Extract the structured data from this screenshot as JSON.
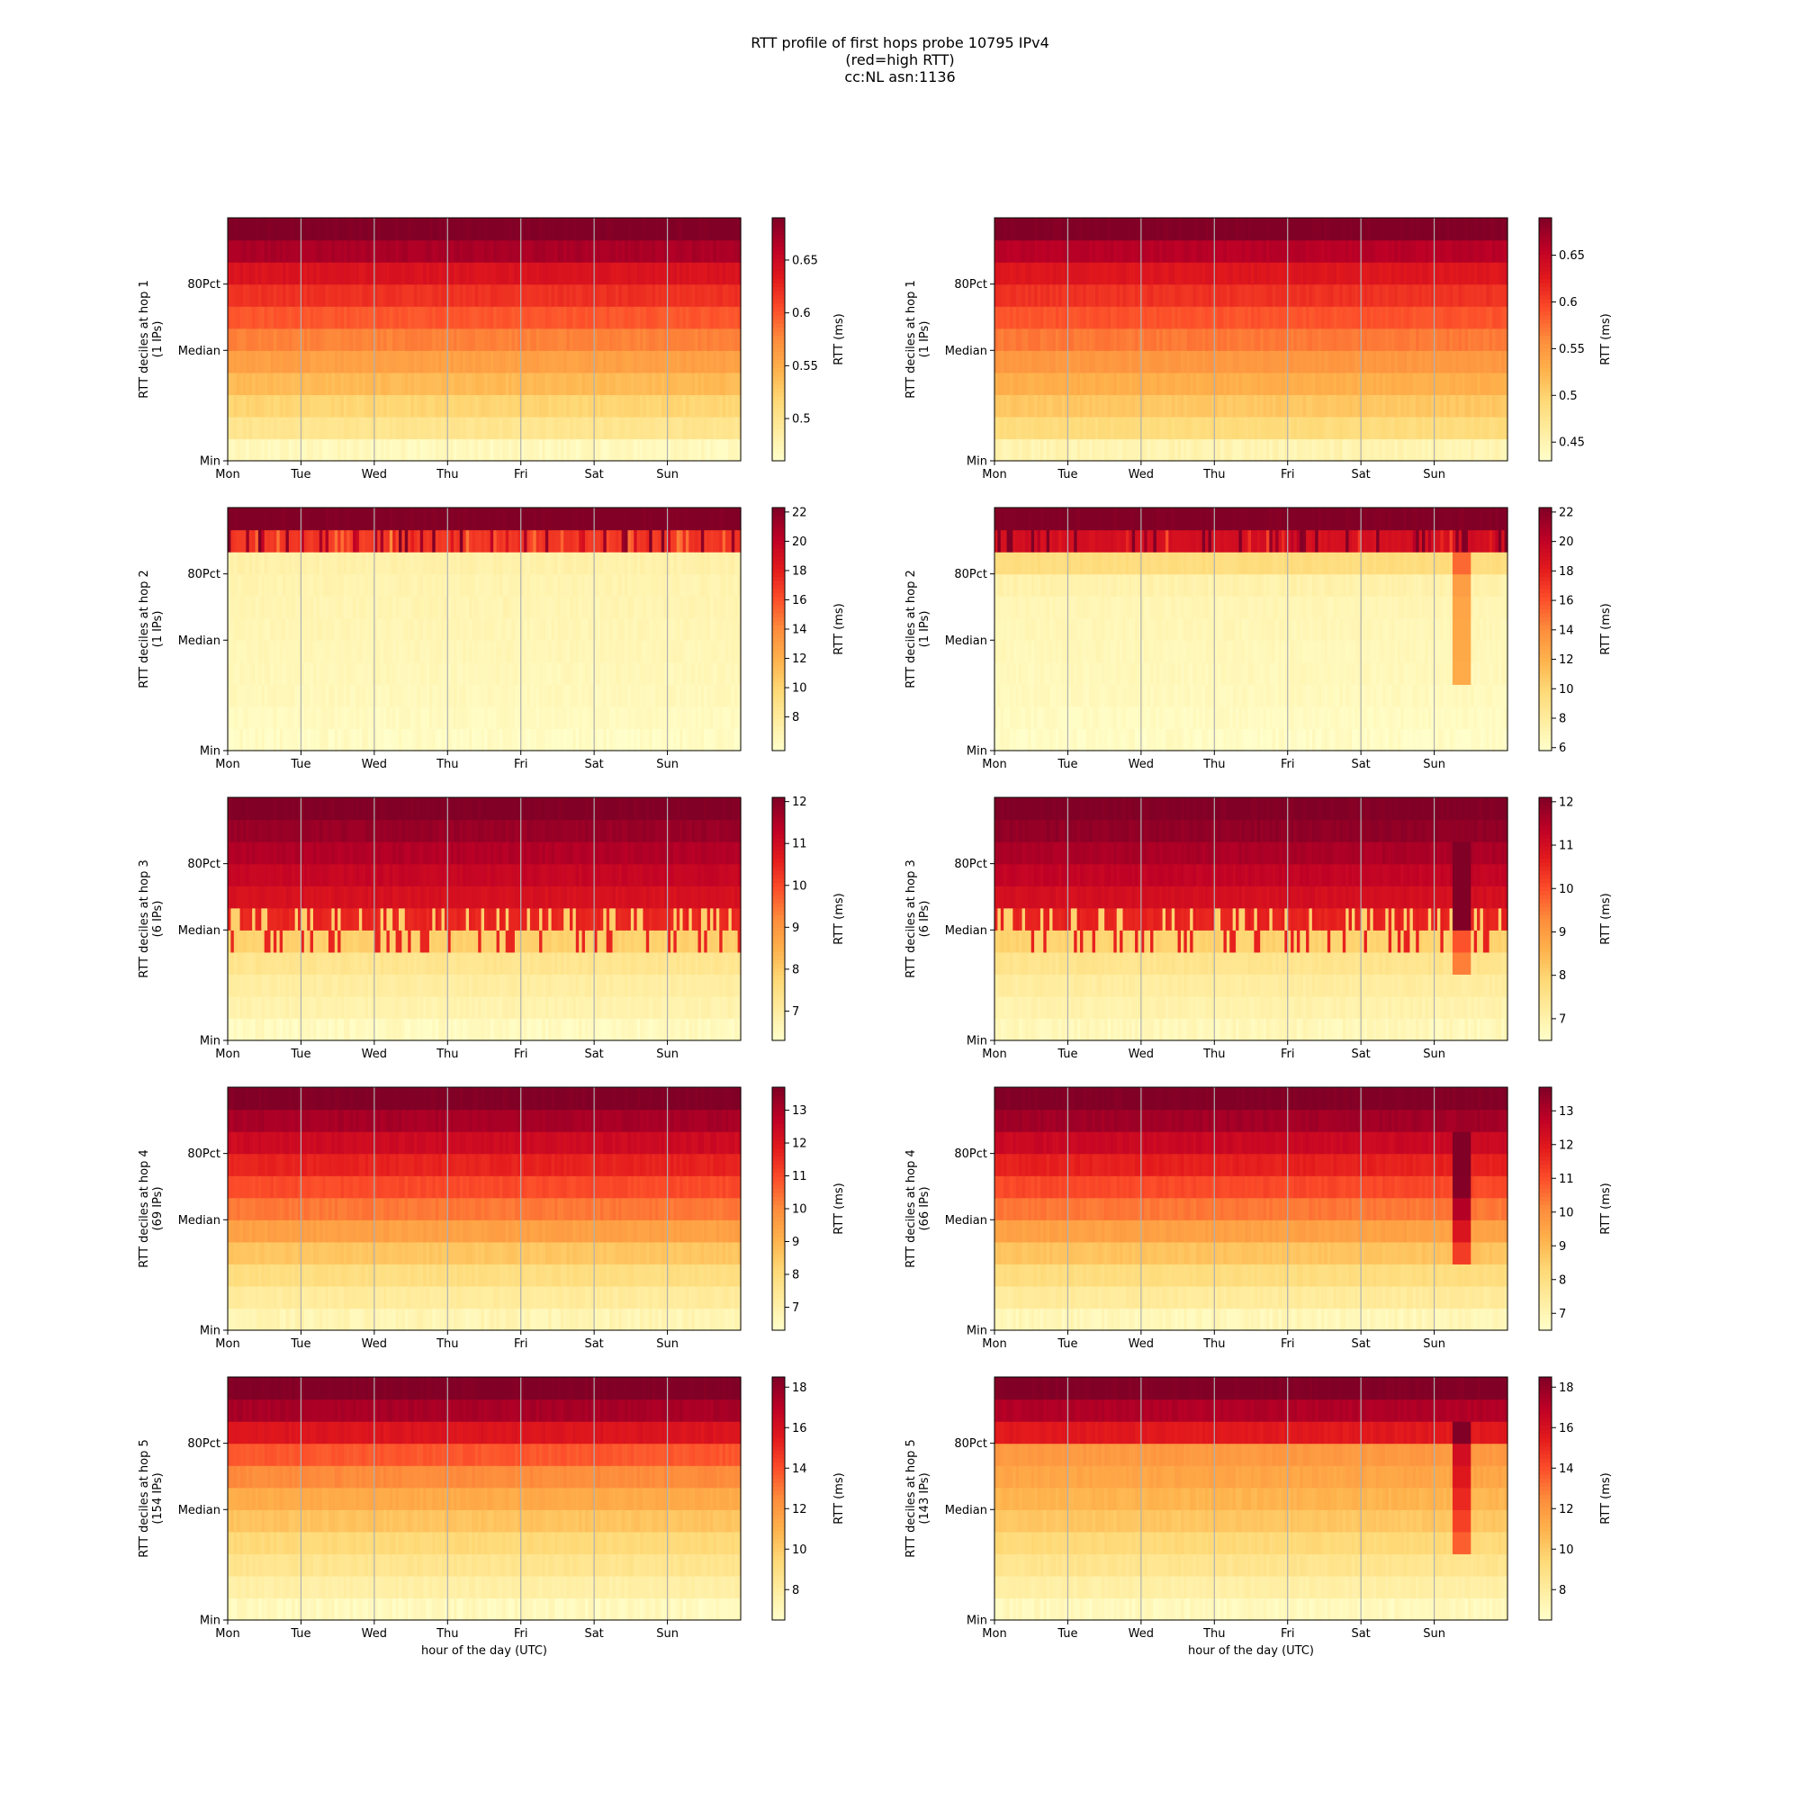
{
  "figure": {
    "title_lines": [
      "RTT profile of first hops probe 10795 IPv4",
      "(red=high RTT)",
      "cc:NL asn:1136"
    ]
  },
  "chart_data": [
    {
      "type": "heatmap",
      "hop": 1,
      "column": "left",
      "ylabel": "RTT deciles at hop 1",
      "ylabel2": "(1 IPs)",
      "colorbar_label": "RTT (ms)",
      "y_ticks": [
        "Min",
        "Median",
        "80Pct"
      ],
      "x_ticks": [
        "Mon",
        "Tue",
        "Wed",
        "Thu",
        "Fri",
        "Sat",
        "Sun"
      ],
      "xlabel": "",
      "colorbar_range": [
        0.46,
        0.69
      ],
      "colorbar_ticks": [
        0.5,
        0.55,
        0.6,
        0.65
      ],
      "decile_values": [
        0.47,
        0.5,
        0.52,
        0.54,
        0.56,
        0.58,
        0.6,
        0.62,
        0.64,
        0.67,
        0.69
      ]
    },
    {
      "type": "heatmap",
      "hop": 1,
      "column": "right",
      "ylabel": "RTT deciles at hop 1",
      "ylabel2": "(1 IPs)",
      "colorbar_label": "RTT (ms)",
      "y_ticks": [
        "Min",
        "Median",
        "80Pct"
      ],
      "x_ticks": [
        "Mon",
        "Tue",
        "Wed",
        "Thu",
        "Fri",
        "Sat",
        "Sun"
      ],
      "xlabel": "",
      "colorbar_range": [
        0.43,
        0.69
      ],
      "colorbar_ticks": [
        0.45,
        0.5,
        0.55,
        0.6,
        0.65
      ],
      "decile_values": [
        0.45,
        0.49,
        0.51,
        0.53,
        0.55,
        0.57,
        0.59,
        0.61,
        0.63,
        0.66,
        0.69
      ]
    },
    {
      "type": "heatmap",
      "hop": 2,
      "column": "left",
      "ylabel": "RTT deciles at hop 2",
      "ylabel2": "(1 IPs)",
      "colorbar_label": "RTT (ms)",
      "y_ticks": [
        "Min",
        "Median",
        "80Pct"
      ],
      "x_ticks": [
        "Mon",
        "Tue",
        "Wed",
        "Thu",
        "Fri",
        "Sat",
        "Sun"
      ],
      "xlabel": "",
      "colorbar_range": [
        5.7,
        22.3
      ],
      "colorbar_ticks": [
        8,
        10,
        12,
        14,
        16,
        18,
        20,
        22
      ],
      "decile_values": [
        6.1,
        6.3,
        6.5,
        6.6,
        6.7,
        6.8,
        6.9,
        7.0,
        7.3,
        17.0,
        22.3
      ]
    },
    {
      "type": "heatmap",
      "hop": 2,
      "column": "right",
      "ylabel": "RTT deciles at hop 2",
      "ylabel2": "(1 IPs)",
      "colorbar_label": "RTT (ms)",
      "y_ticks": [
        "Min",
        "Median",
        "80Pct"
      ],
      "x_ticks": [
        "Mon",
        "Tue",
        "Wed",
        "Thu",
        "Fri",
        "Sat",
        "Sun"
      ],
      "xlabel": "",
      "colorbar_range": [
        5.8,
        22.3
      ],
      "colorbar_ticks": [
        6,
        8,
        10,
        12,
        14,
        16,
        18,
        20,
        22
      ],
      "decile_values": [
        6.1,
        6.3,
        6.5,
        6.6,
        6.7,
        6.8,
        6.9,
        7.3,
        9.5,
        19.0,
        22.3
      ]
    },
    {
      "type": "heatmap",
      "hop": 3,
      "column": "left",
      "ylabel": "RTT deciles at hop 3",
      "ylabel2": "(6 IPs)",
      "colorbar_label": "RTT (ms)",
      "y_ticks": [
        "Min",
        "Median",
        "80Pct"
      ],
      "x_ticks": [
        "Mon",
        "Tue",
        "Wed",
        "Thu",
        "Fri",
        "Sat",
        "Sun"
      ],
      "xlabel": "",
      "colorbar_range": [
        6.3,
        12.1
      ],
      "colorbar_ticks": [
        7,
        8,
        9,
        10,
        11,
        12
      ],
      "decile_values": [
        6.5,
        6.8,
        7.0,
        7.3,
        7.9,
        10.5,
        10.9,
        11.2,
        11.5,
        11.8,
        12.1
      ]
    },
    {
      "type": "heatmap",
      "hop": 3,
      "column": "right",
      "ylabel": "RTT deciles at hop 3",
      "ylabel2": "(6 IPs)",
      "colorbar_label": "RTT (ms)",
      "y_ticks": [
        "Min",
        "Median",
        "80Pct"
      ],
      "x_ticks": [
        "Mon",
        "Tue",
        "Wed",
        "Thu",
        "Fri",
        "Sat",
        "Sun"
      ],
      "xlabel": "",
      "colorbar_range": [
        6.5,
        12.1
      ],
      "colorbar_ticks": [
        7,
        8,
        9,
        10,
        11,
        12
      ],
      "decile_values": [
        6.8,
        7.0,
        7.2,
        7.5,
        8.0,
        10.6,
        11.0,
        11.3,
        11.6,
        11.9,
        12.1
      ]
    },
    {
      "type": "heatmap",
      "hop": 4,
      "column": "left",
      "ylabel": "RTT deciles at hop 4",
      "ylabel2": "(69 IPs)",
      "colorbar_label": "RTT (ms)",
      "y_ticks": [
        "Min",
        "Median",
        "80Pct"
      ],
      "x_ticks": [
        "Mon",
        "Tue",
        "Wed",
        "Thu",
        "Fri",
        "Sat",
        "Sun"
      ],
      "xlabel": "",
      "colorbar_range": [
        6.3,
        13.7
      ],
      "colorbar_ticks": [
        7,
        8,
        9,
        10,
        11,
        12,
        13
      ],
      "decile_values": [
        6.8,
        7.3,
        7.9,
        8.6,
        9.5,
        10.3,
        11.0,
        11.7,
        12.4,
        13.1,
        13.7
      ]
    },
    {
      "type": "heatmap",
      "hop": 4,
      "column": "right",
      "ylabel": "RTT deciles at hop 4",
      "ylabel2": "(66 IPs)",
      "colorbar_label": "RTT (ms)",
      "y_ticks": [
        "Min",
        "Median",
        "80Pct"
      ],
      "x_ticks": [
        "Mon",
        "Tue",
        "Wed",
        "Thu",
        "Fri",
        "Sat",
        "Sun"
      ],
      "xlabel": "",
      "colorbar_range": [
        6.5,
        13.7
      ],
      "colorbar_ticks": [
        7,
        8,
        9,
        10,
        11,
        12,
        13
      ],
      "decile_values": [
        6.9,
        7.5,
        8.1,
        8.8,
        9.6,
        10.4,
        11.1,
        11.8,
        12.5,
        13.2,
        13.7
      ]
    },
    {
      "type": "heatmap",
      "hop": 5,
      "column": "left",
      "ylabel": "RTT deciles at hop 5",
      "ylabel2": "(154 IPs)",
      "colorbar_label": "RTT (ms)",
      "y_ticks": [
        "Min",
        "Median",
        "80Pct"
      ],
      "x_ticks": [
        "Mon",
        "Tue",
        "Wed",
        "Thu",
        "Fri",
        "Sat",
        "Sun"
      ],
      "xlabel": "hour of the day (UTC)",
      "colorbar_range": [
        6.5,
        18.5
      ],
      "colorbar_ticks": [
        8,
        10,
        12,
        14,
        16,
        18
      ],
      "decile_values": [
        7.0,
        7.8,
        8.6,
        9.4,
        10.3,
        11.3,
        12.5,
        13.8,
        15.8,
        17.5,
        18.5
      ]
    },
    {
      "type": "heatmap",
      "hop": 5,
      "column": "right",
      "ylabel": "RTT deciles at hop 5",
      "ylabel2": "(143 IPs)",
      "colorbar_label": "RTT (ms)",
      "y_ticks": [
        "Min",
        "Median",
        "80Pct"
      ],
      "x_ticks": [
        "Mon",
        "Tue",
        "Wed",
        "Thu",
        "Fri",
        "Sat",
        "Sun"
      ],
      "xlabel": "hour of the day (UTC)",
      "colorbar_range": [
        6.5,
        18.5
      ],
      "colorbar_ticks": [
        8,
        10,
        12,
        14,
        16,
        18
      ],
      "decile_values": [
        7.0,
        7.8,
        8.6,
        9.4,
        10.2,
        10.9,
        11.5,
        12.0,
        15.6,
        17.3,
        18.5
      ]
    }
  ]
}
